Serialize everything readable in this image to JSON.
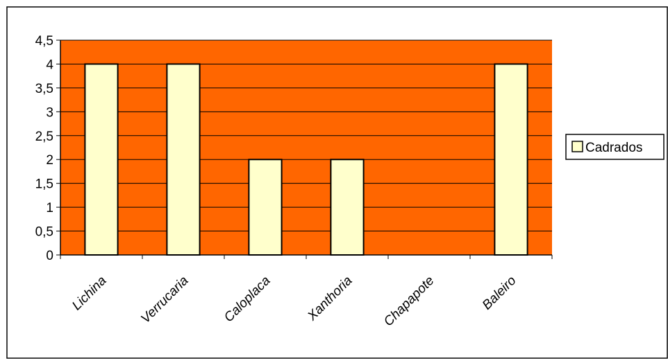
{
  "colors": {
    "plot_background": "#FF6600",
    "bar_fill": "#FFFFCC",
    "bar_stroke": "#000000",
    "gridline": "#000000",
    "frame": "#000000"
  },
  "chart_data": {
    "type": "bar",
    "categories": [
      "Lichina",
      "Verrucaria",
      "Caloplaca",
      "Xanthoria",
      "Chapapote",
      "Baleiro"
    ],
    "series": [
      {
        "name": "Cadrados",
        "values": [
          4,
          4,
          2,
          2,
          0,
          4
        ]
      }
    ],
    "title": "",
    "xlabel": "",
    "ylabel": "",
    "ylim": [
      0,
      4.5
    ],
    "yticks": [
      "0",
      "0,5",
      "1",
      "1,5",
      "2",
      "2,5",
      "3",
      "3,5",
      "4",
      "4,5"
    ],
    "grid": true,
    "legend_position": "right",
    "category_label_rotation": "diagonal"
  }
}
